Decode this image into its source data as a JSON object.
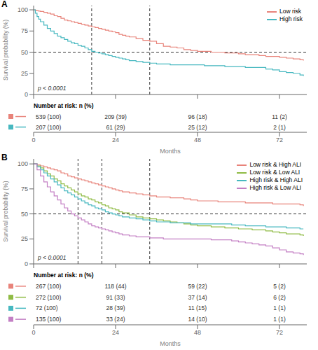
{
  "chart_data": [
    {
      "type": "line",
      "title": "A",
      "ylabel": "Survival probability (%)",
      "xlabel": "Months",
      "annotation": "p < 0.0001",
      "xlim": [
        0,
        80
      ],
      "ylim": [
        0,
        105
      ],
      "yticks": [
        0,
        25,
        50,
        75,
        100
      ],
      "xticks": [
        0,
        24,
        48,
        72
      ],
      "tick_labels": "y",
      "grid": false,
      "legend": "upper right",
      "line_style": "step",
      "hlines": [
        50
      ],
      "vlines": [
        17,
        34
      ],
      "x": [
        0,
        0.5,
        1,
        1.5,
        2,
        3,
        4,
        5,
        6,
        7,
        8,
        9,
        10,
        11,
        12,
        13,
        14,
        15,
        16,
        17,
        18,
        19,
        20,
        21,
        22,
        23,
        24,
        25,
        26,
        27,
        28,
        30,
        32,
        34,
        36,
        38,
        40,
        42,
        44,
        46,
        48,
        50,
        52,
        54,
        56,
        58,
        60,
        62,
        64,
        66,
        68,
        70,
        72,
        74,
        76,
        78,
        79
      ],
      "series": [
        {
          "name": "Low risk",
          "color": "#e8837a",
          "values": [
            100,
            99.5,
            99,
            98.5,
            98,
            97,
            96,
            95,
            93,
            92,
            90,
            88,
            87,
            86,
            85,
            84,
            83,
            82,
            81,
            80,
            79,
            78,
            77,
            76,
            75,
            74,
            73,
            71,
            70,
            69,
            68,
            66,
            64,
            63,
            60,
            57,
            56,
            55,
            53,
            52,
            51,
            51,
            50,
            50,
            49,
            49,
            48,
            47,
            47,
            46,
            45,
            45,
            44,
            43,
            42,
            41,
            40
          ]
        },
        {
          "name": "High risk",
          "color": "#47b8c0",
          "values": [
            100,
            96,
            92,
            89,
            86,
            82,
            78,
            75,
            72,
            69,
            67,
            65,
            63,
            61,
            60,
            58,
            57,
            55,
            53,
            51,
            50,
            49,
            48,
            47,
            46,
            45,
            44,
            43,
            42,
            41,
            40,
            39,
            38,
            37,
            36,
            36,
            35,
            35,
            35,
            35,
            35,
            34,
            34,
            34,
            33,
            33,
            33,
            32,
            32,
            32,
            30,
            29,
            27,
            26,
            25,
            23,
            22
          ]
        }
      ],
      "risk_table": {
        "title": "Number at risk: n (%)",
        "times": [
          0,
          24,
          48,
          72
        ],
        "rows": [
          {
            "color": "#e8837a",
            "values": [
              "539 (100)",
              "209 (39)",
              "96 (18)",
              "11 (2)"
            ]
          },
          {
            "color": "#47b8c0",
            "values": [
              "207 (100)",
              "61 (29)",
              "25 (12)",
              "2 (1)"
            ]
          }
        ]
      }
    },
    {
      "type": "line",
      "title": "B",
      "ylabel": "Survival probability (%)",
      "xlabel": "Months",
      "annotation": "p < 0.0001",
      "xlim": [
        0,
        80
      ],
      "ylim": [
        0,
        105
      ],
      "yticks": [
        0,
        25,
        50,
        75,
        100
      ],
      "xticks": [
        0,
        24,
        48,
        72
      ],
      "tick_labels": "y",
      "grid": false,
      "legend": "upper right",
      "line_style": "step",
      "hlines": [
        50
      ],
      "vlines": [
        13,
        20,
        34
      ],
      "x": [
        0,
        1,
        2,
        3,
        4,
        5,
        6,
        7,
        8,
        9,
        10,
        11,
        12,
        13,
        14,
        15,
        16,
        17,
        18,
        19,
        20,
        21,
        22,
        23,
        24,
        25,
        26,
        28,
        30,
        32,
        34,
        36,
        38,
        40,
        42,
        44,
        46,
        48,
        50,
        52,
        54,
        56,
        58,
        60,
        62,
        64,
        66,
        68,
        70,
        72,
        74,
        76,
        78,
        79
      ],
      "series": [
        {
          "name": "Low risk & High ALI",
          "color": "#e8837a",
          "values": [
            100,
            99,
            98,
            97,
            96,
            95,
            94,
            93,
            91,
            90,
            88,
            87,
            86,
            85,
            84,
            83,
            82,
            81,
            80,
            79,
            78,
            77,
            76,
            75,
            74,
            73,
            72,
            71,
            70,
            69,
            68,
            67,
            67,
            66,
            66,
            65,
            64,
            63,
            63,
            63,
            62,
            62,
            62,
            62,
            61,
            61,
            61,
            61,
            60,
            60,
            60,
            60,
            59,
            58
          ]
        },
        {
          "name": "Low risk & Low ALI",
          "color": "#8fbb44",
          "values": [
            100,
            98,
            96,
            93,
            90,
            88,
            85,
            83,
            80,
            78,
            76,
            74,
            72,
            70,
            68,
            67,
            65,
            64,
            62,
            61,
            59,
            58,
            56,
            55,
            54,
            52,
            51,
            49,
            47,
            46,
            45,
            44,
            43,
            42,
            41,
            40,
            39,
            38,
            38,
            37,
            37,
            36,
            36,
            35,
            35,
            34,
            34,
            33,
            32,
            31,
            30,
            30,
            29,
            28
          ]
        },
        {
          "name": "High risk & High ALI",
          "color": "#47b8c0",
          "values": [
            100,
            97,
            94,
            91,
            88,
            85,
            82,
            79,
            76,
            73,
            71,
            69,
            67,
            65,
            63,
            61,
            59,
            58,
            56,
            55,
            54,
            52,
            51,
            50,
            49,
            48,
            47,
            46,
            45,
            44,
            43,
            42,
            42,
            41,
            41,
            41,
            40,
            40,
            40,
            40,
            40,
            40,
            39,
            39,
            38,
            38,
            38,
            37,
            37,
            37,
            36,
            36,
            35,
            35
          ]
        },
        {
          "name": "High risk & Low ALI",
          "color": "#c37fc4",
          "values": [
            100,
            94,
            88,
            82,
            77,
            72,
            68,
            64,
            60,
            56,
            53,
            50,
            48,
            46,
            44,
            42,
            40,
            38,
            37,
            36,
            35,
            34,
            33,
            32,
            31,
            30,
            29,
            28,
            27,
            27,
            26,
            26,
            25,
            25,
            25,
            25,
            25,
            25,
            25,
            24,
            24,
            24,
            23,
            22,
            21,
            20,
            19,
            18,
            16,
            14,
            12,
            11,
            10,
            9
          ]
        }
      ],
      "risk_table": {
        "title": "Number at risk: n (%)",
        "times": [
          0,
          24,
          48,
          72
        ],
        "rows": [
          {
            "color": "#e8837a",
            "values": [
              "267 (100)",
              "118 (44)",
              "59 (22)",
              "5 (2)"
            ]
          },
          {
            "color": "#8fbb44",
            "values": [
              "272 (100)",
              "91 (33)",
              "37 (14)",
              "6 (2)"
            ]
          },
          {
            "color": "#47b8c0",
            "values": [
              "72 (100)",
              "28 (39)",
              "11 (15)",
              "1 (1)"
            ]
          },
          {
            "color": "#c37fc4",
            "values": [
              "135 (100)",
              "33 (24)",
              "14 (10)",
              "1 (1)"
            ]
          }
        ]
      }
    }
  ]
}
